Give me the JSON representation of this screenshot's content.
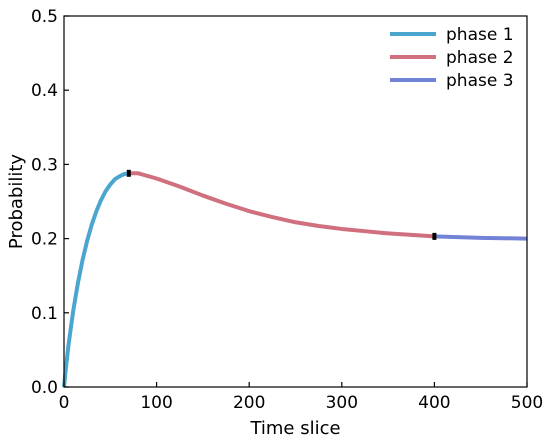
{
  "chart_data": {
    "type": "line",
    "title": "",
    "xlabel": "Time slice",
    "ylabel": "Probability",
    "xlim": [
      0,
      500
    ],
    "ylim": [
      0,
      0.5
    ],
    "xticks": [
      0,
      100,
      200,
      300,
      400,
      500
    ],
    "yticks": [
      0.0,
      0.1,
      0.2,
      0.3,
      0.4,
      0.5
    ],
    "xtick_labels": [
      "0",
      "100",
      "200",
      "300",
      "400",
      "500"
    ],
    "ytick_labels": [
      "0.0",
      "0.1",
      "0.2",
      "0.3",
      "0.4",
      "0.5"
    ],
    "grid": false,
    "legend_position": "top-right",
    "series": [
      {
        "name": "phase 1",
        "color": "#4ba6cf",
        "x": [
          0,
          2,
          5,
          10,
          15,
          20,
          25,
          30,
          35,
          40,
          45,
          50,
          55,
          60,
          65,
          70
        ],
        "y": [
          0.0,
          0.025,
          0.058,
          0.103,
          0.14,
          0.171,
          0.197,
          0.219,
          0.237,
          0.252,
          0.264,
          0.273,
          0.28,
          0.284,
          0.287,
          0.288
        ]
      },
      {
        "name": "phase 2",
        "color": "#d06f7e",
        "x": [
          70,
          80,
          100,
          125,
          150,
          175,
          200,
          225,
          250,
          275,
          300,
          325,
          350,
          375,
          400
        ],
        "y": [
          0.288,
          0.288,
          0.281,
          0.27,
          0.258,
          0.247,
          0.237,
          0.229,
          0.222,
          0.217,
          0.213,
          0.21,
          0.207,
          0.205,
          0.203
        ]
      },
      {
        "name": "phase 3",
        "color": "#7283d7",
        "x": [
          400,
          425,
          450,
          475,
          500
        ],
        "y": [
          0.203,
          0.202,
          0.201,
          0.2005,
          0.2
        ]
      }
    ],
    "markers": [
      {
        "x": 70,
        "y": 0.288
      },
      {
        "x": 400,
        "y": 0.203
      }
    ]
  }
}
